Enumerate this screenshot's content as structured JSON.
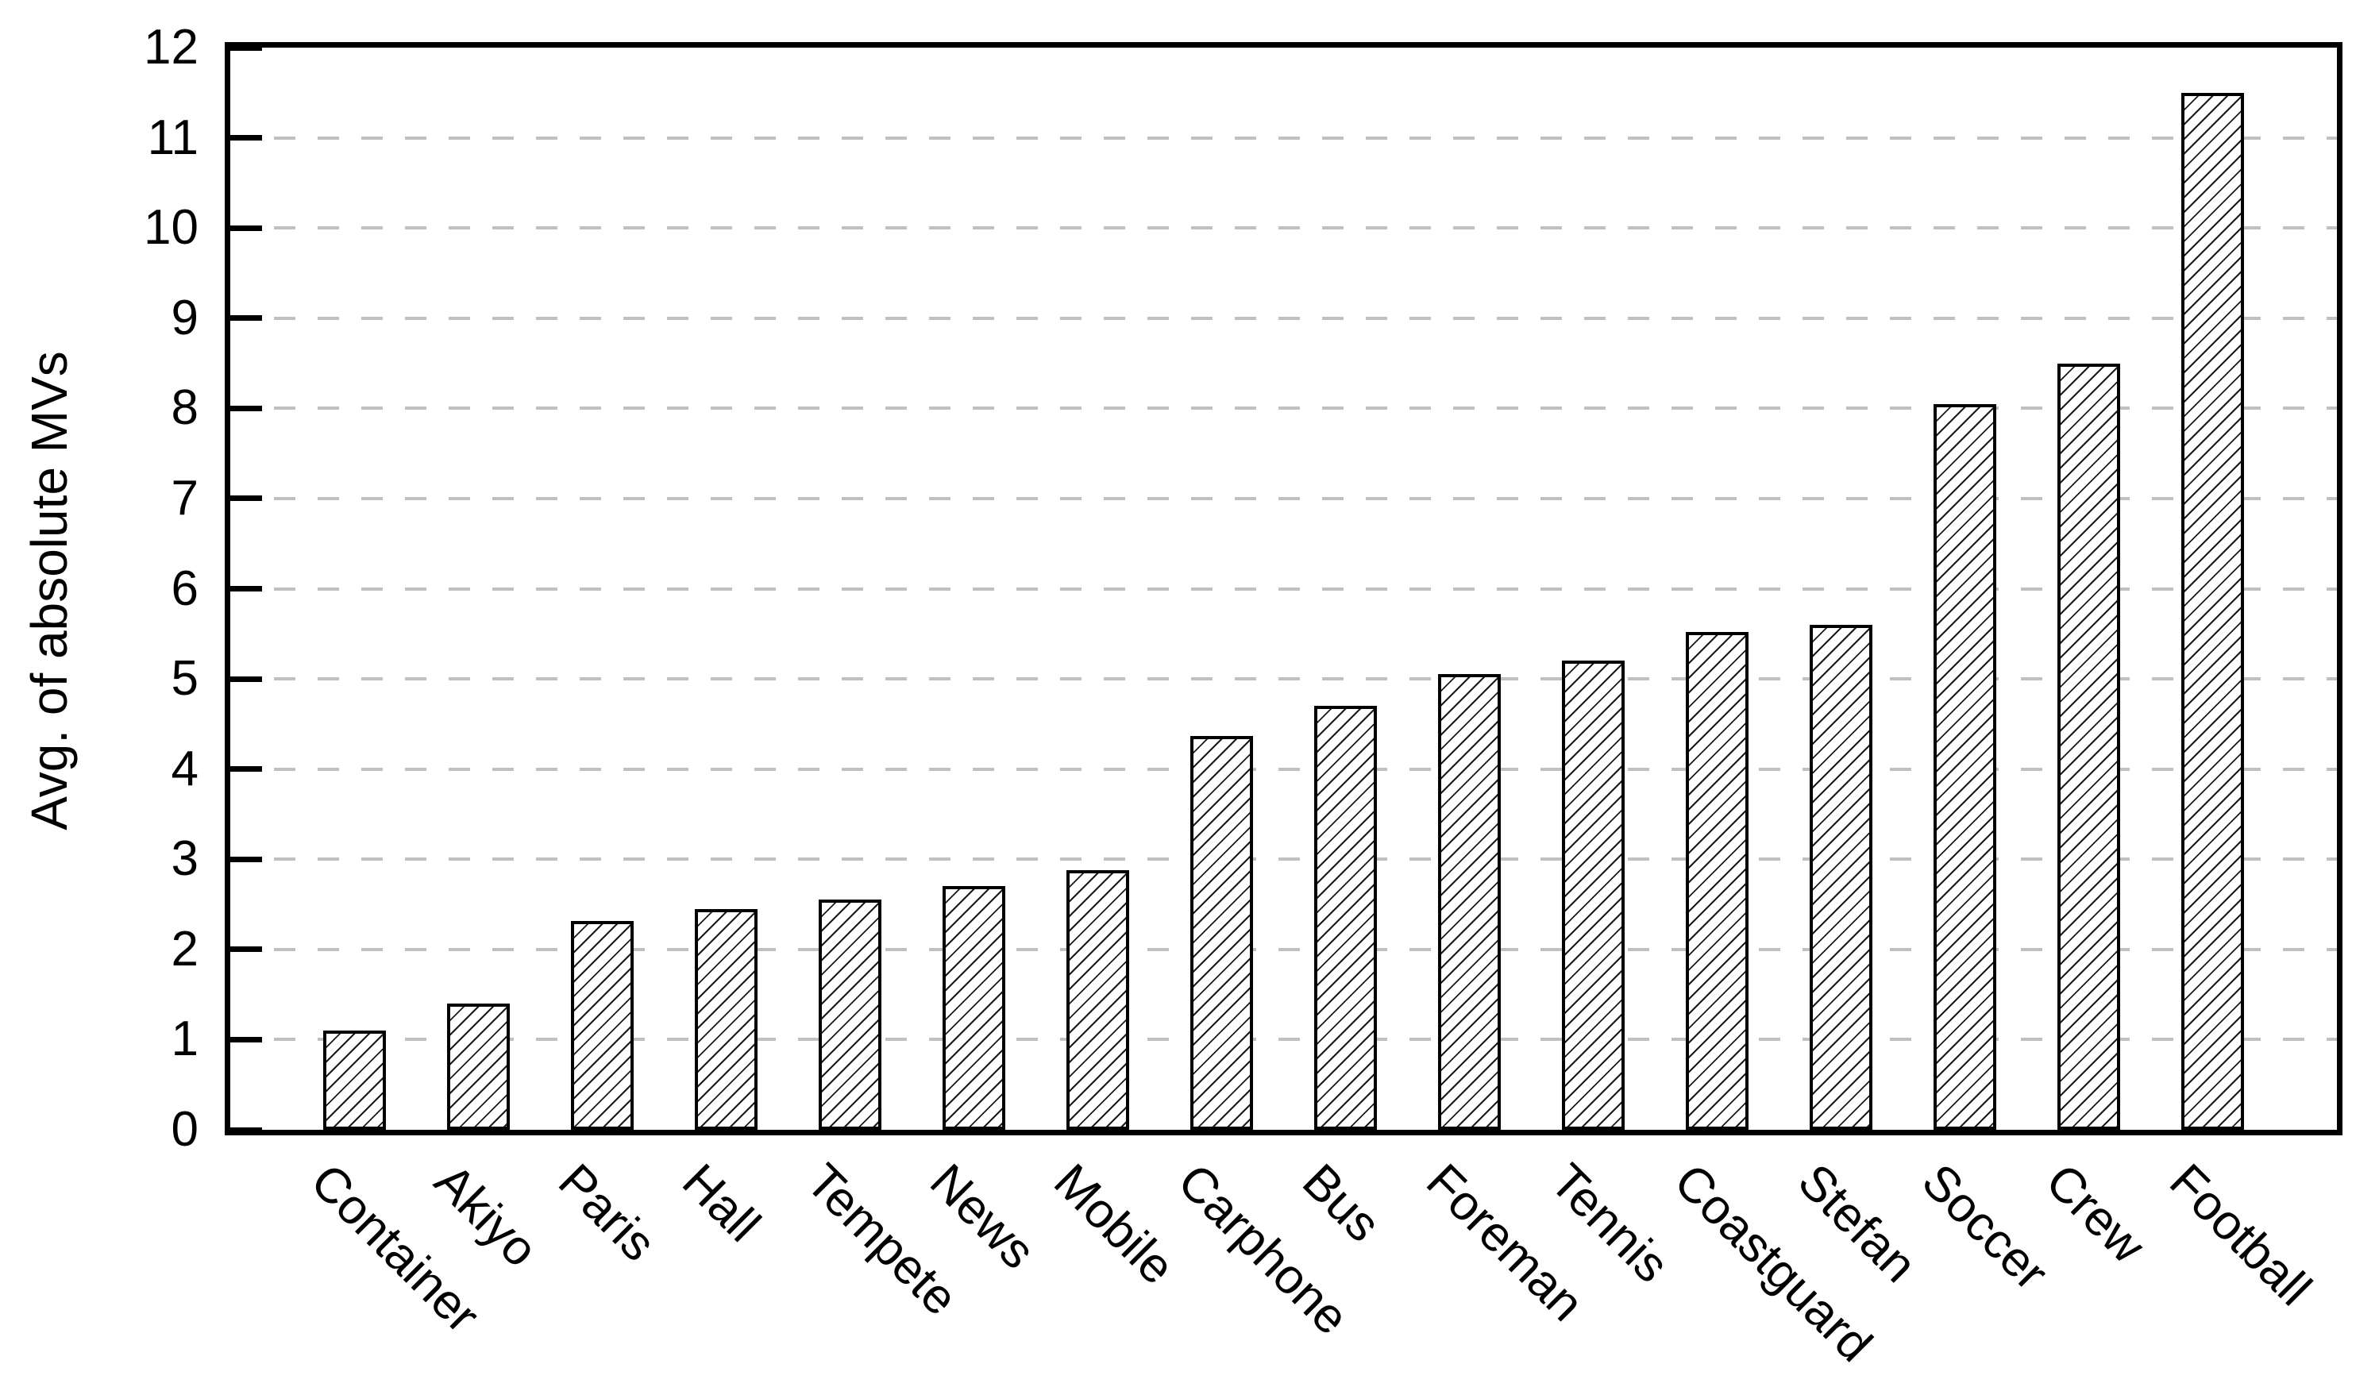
{
  "chart_data": {
    "type": "bar",
    "title": "",
    "xlabel": "",
    "ylabel": "Avg. of absolute MVs",
    "categories": [
      "Container",
      "Akiyo",
      "Paris",
      "Hall",
      "Tempete",
      "News",
      "Mobile",
      "Carphone",
      "Bus",
      "Foreman",
      "Tennis",
      "Coastguard",
      "Stefan",
      "Soccer",
      "Crew",
      "Football"
    ],
    "values": [
      1.1,
      1.4,
      2.32,
      2.45,
      2.55,
      2.7,
      2.88,
      4.37,
      4.7,
      5.05,
      5.2,
      5.52,
      5.6,
      8.05,
      8.5,
      11.5
    ],
    "ylim": [
      0,
      12
    ],
    "ytick_step": 1,
    "ytick_labels": [
      "0",
      "1",
      "2",
      "3",
      "4",
      "5",
      "6",
      "7",
      "8",
      "9",
      "10",
      "11",
      "12"
    ],
    "grid": "horizontal-dashed",
    "gridlines_at": [
      1,
      2,
      3,
      4,
      5,
      6,
      7,
      8,
      9,
      10,
      11
    ],
    "legend_position": "none",
    "x_label_rotation_deg": 45,
    "bar_style": {
      "fill": "#ffffff",
      "hatch": "forward-diagonal",
      "outline": "#000000"
    },
    "colors": {
      "background": "#ffffff",
      "axis_frame": "#000000",
      "grid": "#c0c0c0",
      "text": "#000000"
    }
  }
}
